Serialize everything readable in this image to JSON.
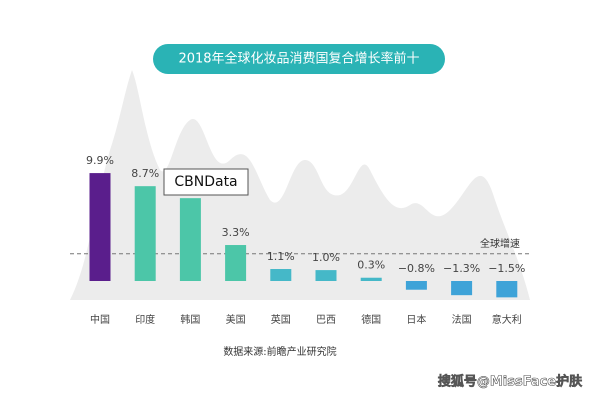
{
  "chart_data": {
    "type": "bar",
    "title": "2018年全球化妆品消费国复合增长率前十",
    "categories": [
      "中国",
      "印度",
      "韩国",
      "美国",
      "英国",
      "巴西",
      "德国",
      "日本",
      "法国",
      "意大利"
    ],
    "values": [
      9.9,
      8.7,
      7.6,
      3.3,
      1.1,
      1.0,
      0.3,
      -0.8,
      -1.3,
      -1.5
    ],
    "value_labels": [
      "9.9%",
      "8.7%",
      null,
      "3.3%",
      "1.1%",
      "1.0%",
      "0.3%",
      "−0.8%",
      "−1.3%",
      "−1.5%"
    ],
    "colors": [
      "#5a1e8c",
      "#4cc6a8",
      "#4cc6a8",
      "#4cc6a8",
      "#45b8c8",
      "#45b8c8",
      "#45b8c8",
      "#3ea3d8",
      "#3ea3d8",
      "#3ea3d8"
    ],
    "reference_line": {
      "label": "全球增速",
      "value": 2.5
    },
    "source": "数据来源:前瞻产业研究院",
    "watermark": "CBNData",
    "footer": "搜狐号@MissFace护肤"
  }
}
